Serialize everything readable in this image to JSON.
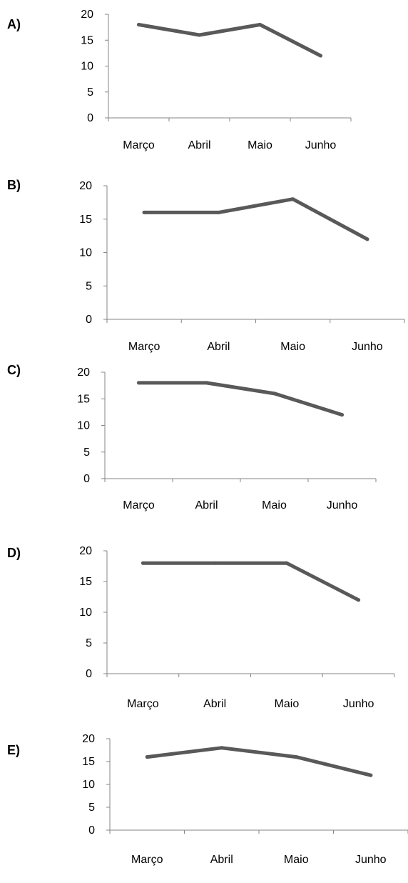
{
  "chart_data": [
    {
      "option": "A)",
      "type": "line",
      "categories": [
        "Março",
        "Abril",
        "Maio",
        "Junho"
      ],
      "series": [
        {
          "values": [
            18,
            16,
            18,
            12
          ]
        }
      ],
      "ylim": [
        0,
        20
      ],
      "yticks": [
        "0",
        "5",
        "10",
        "15",
        "20"
      ],
      "grid": false,
      "line_color": "#595959"
    },
    {
      "option": "B)",
      "type": "line",
      "categories": [
        "Março",
        "Abril",
        "Maio",
        "Junho"
      ],
      "series": [
        {
          "values": [
            16,
            16,
            18,
            12
          ]
        }
      ],
      "ylim": [
        0,
        20
      ],
      "yticks": [
        "0",
        "5",
        "10",
        "15",
        "20"
      ],
      "grid": false,
      "line_color": "#595959"
    },
    {
      "option": "C)",
      "type": "line",
      "categories": [
        "Março",
        "Abril",
        "Maio",
        "Junho"
      ],
      "series": [
        {
          "values": [
            18,
            18,
            16,
            12
          ]
        }
      ],
      "ylim": [
        0,
        20
      ],
      "yticks": [
        "0",
        "5",
        "10",
        "15",
        "20"
      ],
      "grid": false,
      "line_color": "#595959"
    },
    {
      "option": "D)",
      "type": "line",
      "categories": [
        "Março",
        "Abril",
        "Maio",
        "Junho"
      ],
      "series": [
        {
          "values": [
            18,
            18,
            18,
            12
          ]
        }
      ],
      "ylim": [
        0,
        20
      ],
      "yticks": [
        "0",
        "5",
        "10",
        "15",
        "20"
      ],
      "grid": false,
      "line_color": "#595959"
    },
    {
      "option": "E)",
      "type": "line",
      "categories": [
        "Março",
        "Abril",
        "Maio",
        "Junho"
      ],
      "series": [
        {
          "values": [
            16,
            18,
            16,
            12
          ]
        }
      ],
      "ylim": [
        0,
        20
      ],
      "yticks": [
        "0",
        "5",
        "10",
        "15",
        "20"
      ],
      "grid": false,
      "line_color": "#595959"
    }
  ]
}
